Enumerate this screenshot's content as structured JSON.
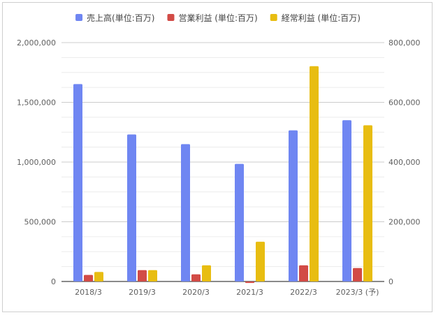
{
  "chart_data": {
    "type": "bar",
    "categories": [
      "2018/3",
      "2019/3",
      "2020/3",
      "2021/3",
      "2022/3",
      "2023/3 (予)"
    ],
    "series": [
      {
        "name": "売上高(単位:百万)",
        "axis": "left",
        "color": "#6f86f2",
        "values": [
          1653000,
          1231000,
          1150000,
          985000,
          1265000,
          1350000
        ]
      },
      {
        "name": "営業利益 (単位:百万)",
        "axis": "right",
        "color": "#d24b46",
        "values": [
          22000,
          38000,
          24000,
          -5000,
          54000,
          45000
        ]
      },
      {
        "name": "経常利益 (単位:百万)",
        "axis": "right",
        "color": "#e8bd11",
        "values": [
          32000,
          38000,
          54000,
          133000,
          721000,
          523000
        ]
      }
    ],
    "left_axis": {
      "ylim": [
        0,
        2000000
      ],
      "ticks": [
        "0",
        "500,000",
        "1,000,000",
        "1,500,000",
        "2,000,000"
      ]
    },
    "right_axis": {
      "ylim": [
        0,
        800000
      ],
      "ticks": [
        "0",
        "200,000",
        "400,000",
        "600,000",
        "800,000"
      ]
    },
    "legend_position": "top",
    "grid": true
  }
}
